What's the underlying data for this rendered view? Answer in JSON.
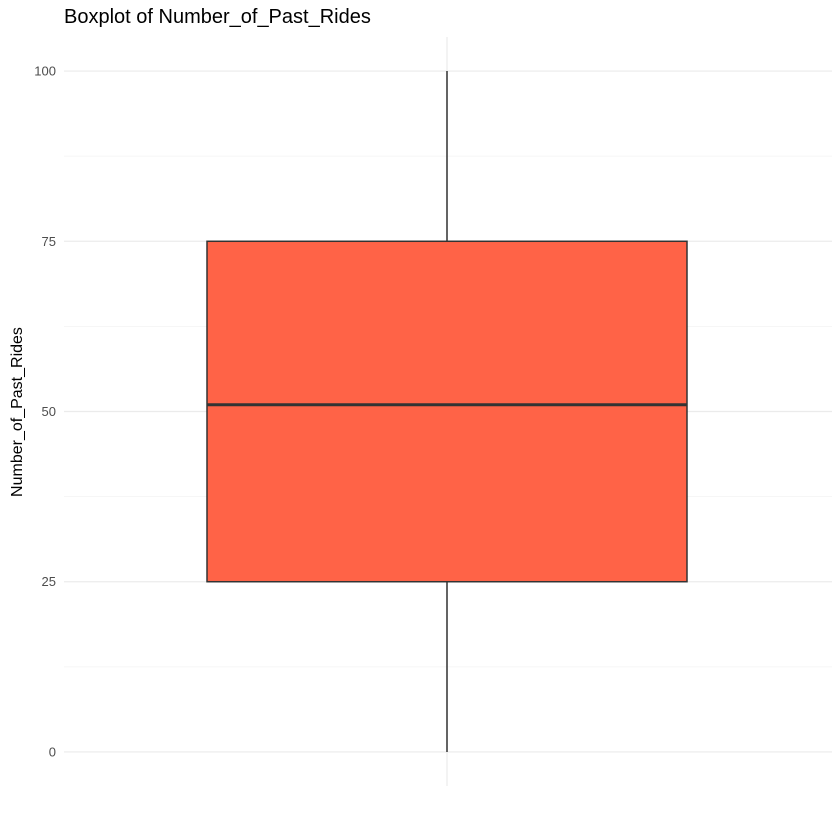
{
  "chart_data": {
    "type": "boxplot",
    "title": "Boxplot of Number_of_Past_Rides",
    "xlabel": "",
    "ylabel": "Number_of_Past_Rides",
    "ylim": [
      -5,
      105
    ],
    "y_ticks": [
      0,
      25,
      50,
      75,
      100
    ],
    "y_minor_ticks": [
      12.5,
      37.5,
      62.5,
      87.5
    ],
    "grid": true,
    "legend": "none",
    "box": {
      "min": 0,
      "q1": 25,
      "median": 51,
      "q3": 75,
      "max": 100
    },
    "fill_color": "#FF6347",
    "line_color": "#333333"
  }
}
